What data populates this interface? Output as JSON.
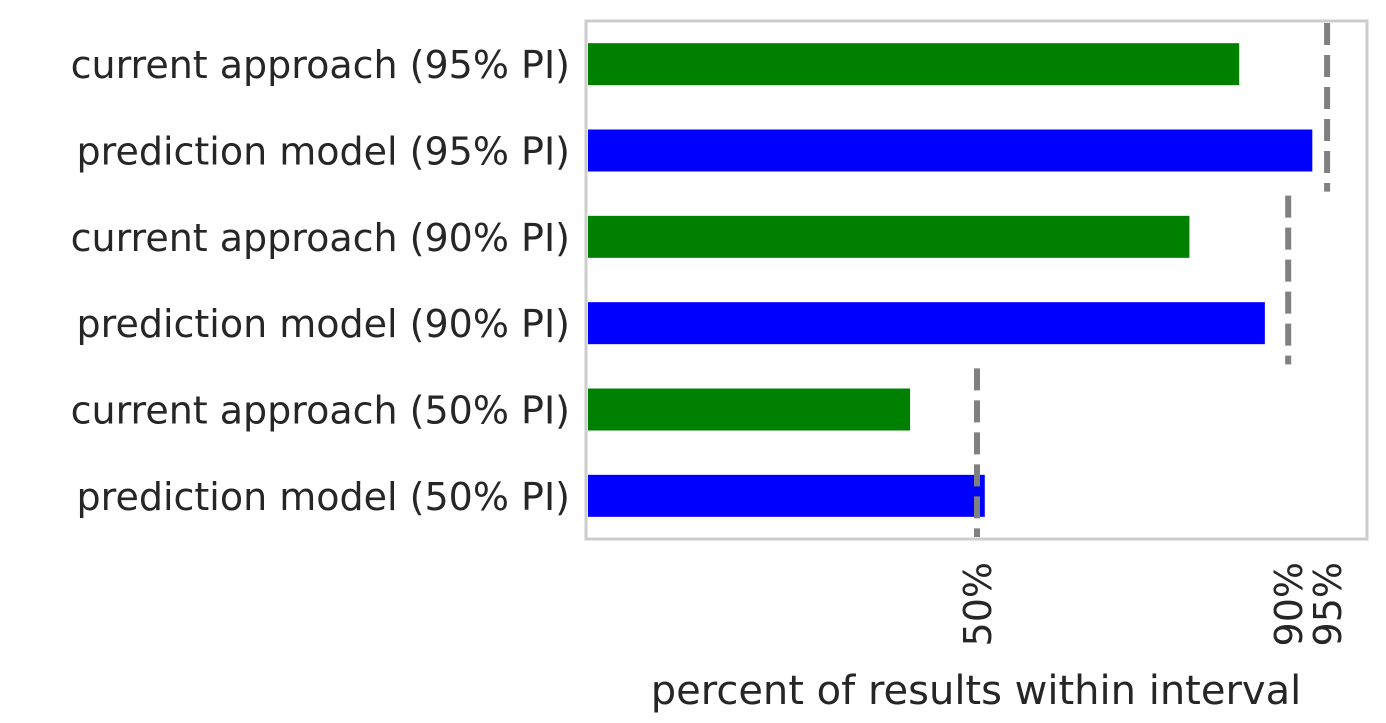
{
  "chart_data": {
    "type": "bar",
    "orientation": "horizontal",
    "title": "",
    "xlabel": "percent of results within interval",
    "ylabel": "",
    "categories": [
      "current approach (95% PI)",
      "prediction model (95% PI)",
      "current approach (90% PI)",
      "prediction model (90% PI)",
      "current approach (50% PI)",
      "prediction model (50% PI)"
    ],
    "values": [
      83.7,
      93.1,
      77.3,
      87.0,
      41.4,
      51.0
    ],
    "bar_colors": [
      "#008000",
      "#0000ff",
      "#008000",
      "#0000ff",
      "#008000",
      "#0000ff"
    ],
    "xlim": [
      0,
      100
    ],
    "xticks": [
      {
        "value": 50,
        "label": "50%"
      },
      {
        "value": 90,
        "label": "90%"
      },
      {
        "value": 95,
        "label": "95%"
      }
    ],
    "reference_lines": [
      {
        "value": 95,
        "groups": [
          "95% PI"
        ],
        "color": "#808080",
        "style": "dashed"
      },
      {
        "value": 90,
        "groups": [
          "90% PI"
        ],
        "color": "#808080",
        "style": "dashed"
      },
      {
        "value": 50,
        "groups": [
          "50% PI"
        ],
        "color": "#808080",
        "style": "dashed"
      }
    ],
    "grid": false,
    "legend": "none",
    "frame_color": "#cccccc"
  }
}
